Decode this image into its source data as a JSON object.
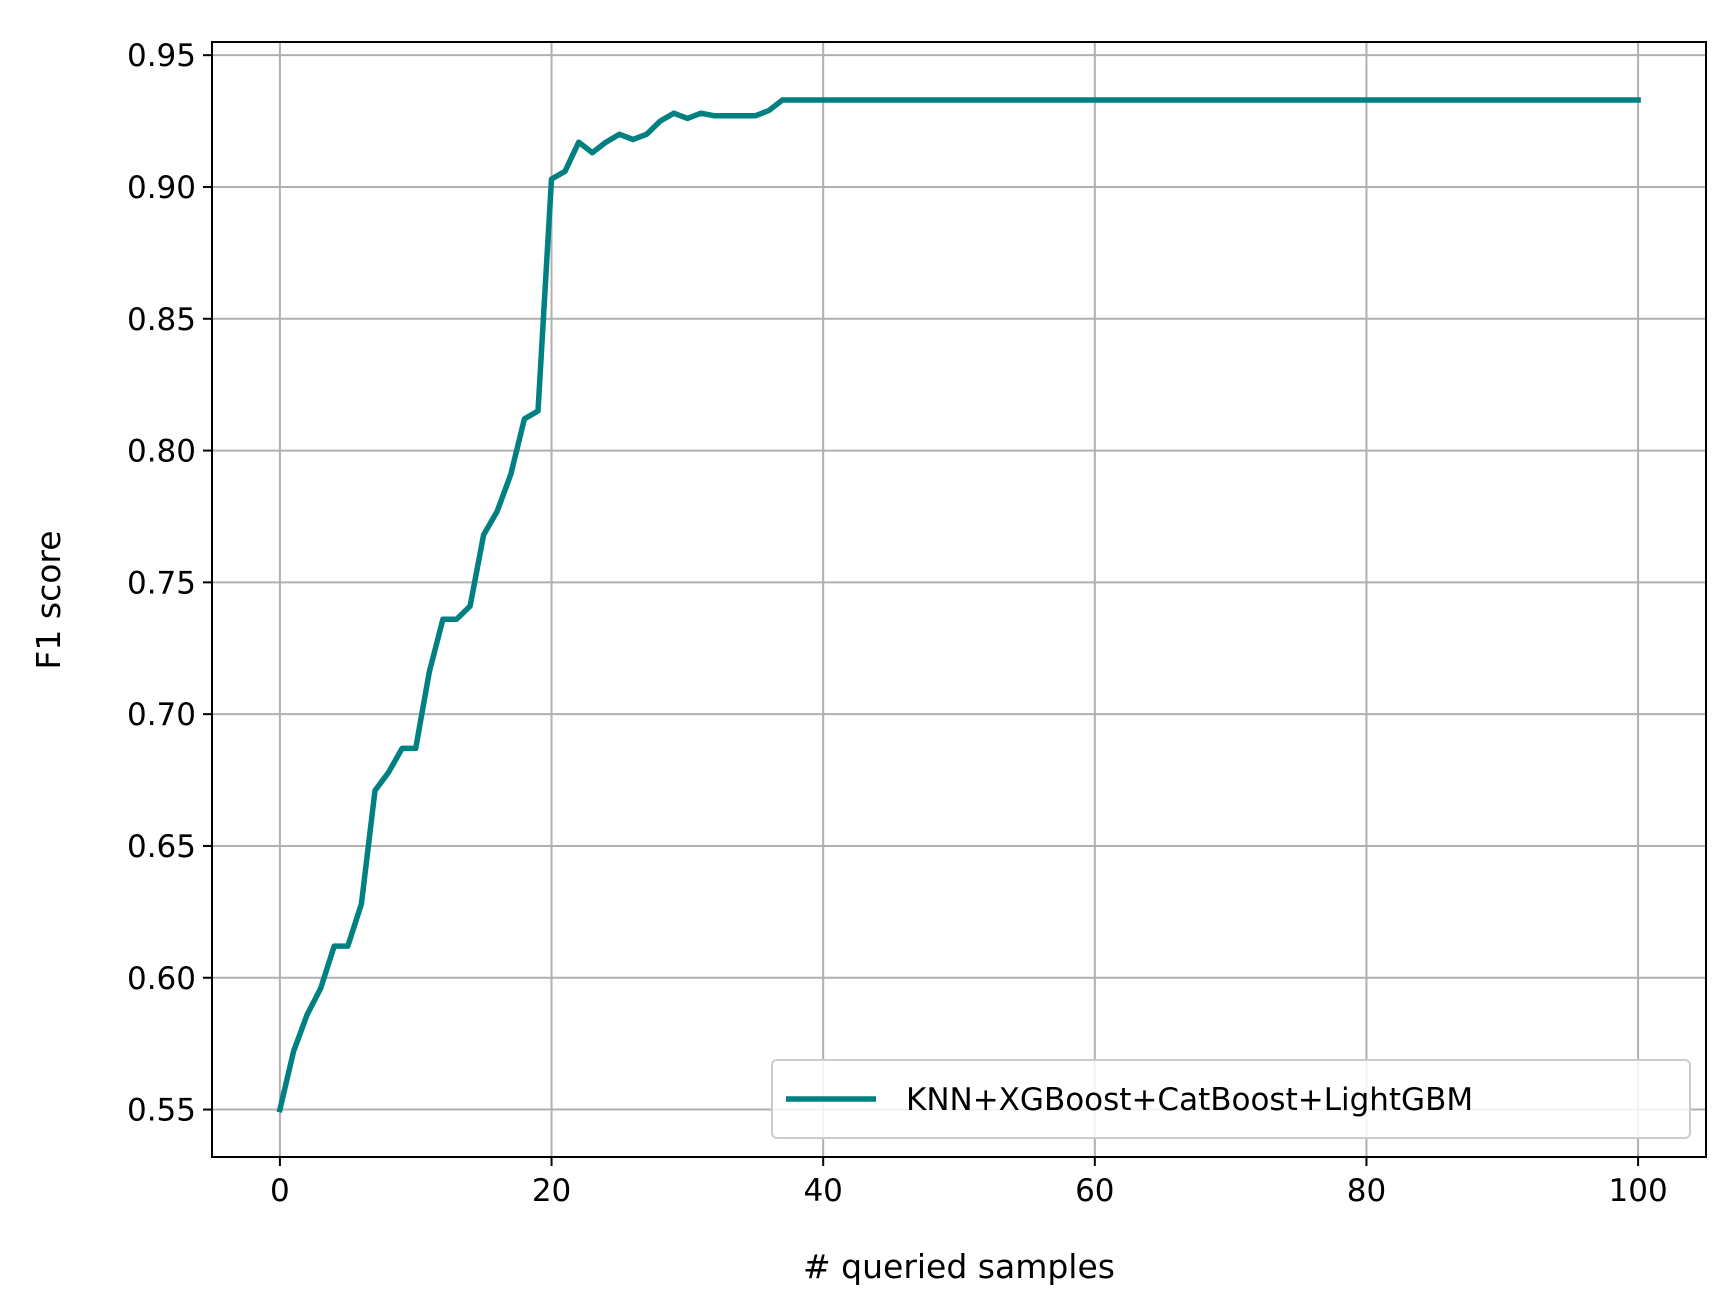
{
  "chart_data": {
    "type": "line",
    "xlabel": "# queried samples",
    "ylabel": "F1 score",
    "xlim": [
      -5,
      105
    ],
    "ylim": [
      0.532,
      0.955
    ],
    "xticks": [
      0,
      20,
      40,
      60,
      80,
      100
    ],
    "yticks": [
      0.55,
      0.6,
      0.65,
      0.7,
      0.75,
      0.8,
      0.85,
      0.9,
      0.95
    ],
    "grid": true,
    "legend_position": "lower right",
    "series": [
      {
        "name": "KNN+XGBoost+CatBoost+LightGBM",
        "color": "#008080",
        "x": [
          0,
          1,
          2,
          3,
          4,
          5,
          6,
          7,
          8,
          9,
          10,
          11,
          12,
          13,
          14,
          15,
          16,
          17,
          18,
          19,
          20,
          21,
          22,
          23,
          24,
          25,
          26,
          27,
          28,
          29,
          30,
          31,
          32,
          33,
          34,
          35,
          36,
          37,
          38,
          40,
          50,
          60,
          70,
          80,
          90,
          100
        ],
        "y": [
          0.55,
          0.572,
          0.586,
          0.596,
          0.612,
          0.612,
          0.628,
          0.671,
          0.678,
          0.687,
          0.687,
          0.716,
          0.736,
          0.736,
          0.741,
          0.768,
          0.777,
          0.791,
          0.812,
          0.815,
          0.903,
          0.906,
          0.917,
          0.913,
          0.917,
          0.92,
          0.918,
          0.92,
          0.925,
          0.928,
          0.926,
          0.928,
          0.927,
          0.927,
          0.927,
          0.927,
          0.929,
          0.933,
          0.933,
          0.933,
          0.933,
          0.933,
          0.933,
          0.933,
          0.933,
          0.933
        ]
      }
    ]
  }
}
